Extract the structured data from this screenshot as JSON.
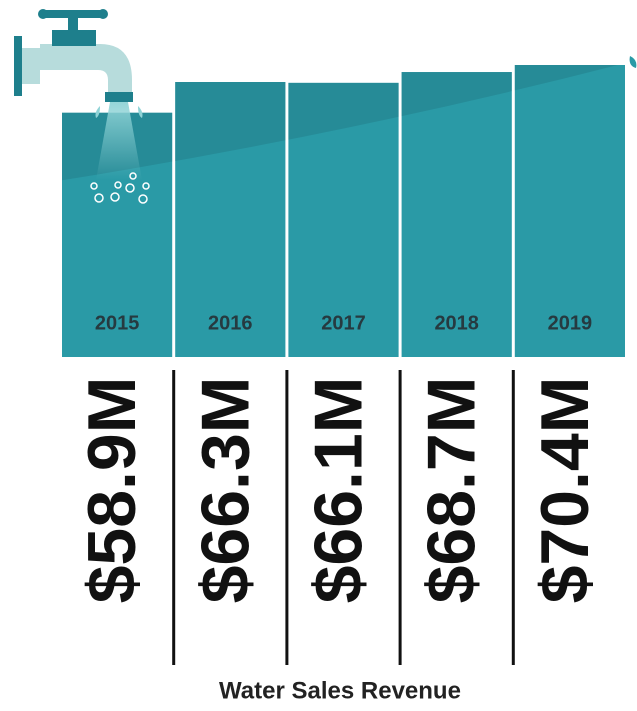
{
  "chart_data": {
    "type": "bar",
    "title": "Water Sales Revenue",
    "categories": [
      "2015",
      "2016",
      "2017",
      "2018",
      "2019"
    ],
    "values": [
      58.9,
      66.3,
      66.1,
      68.7,
      70.4
    ],
    "value_labels": [
      "$58.9M",
      "$66.3M",
      "$66.1M",
      "$68.7M",
      "$70.4M"
    ],
    "color": "#2a9aa6"
  }
}
